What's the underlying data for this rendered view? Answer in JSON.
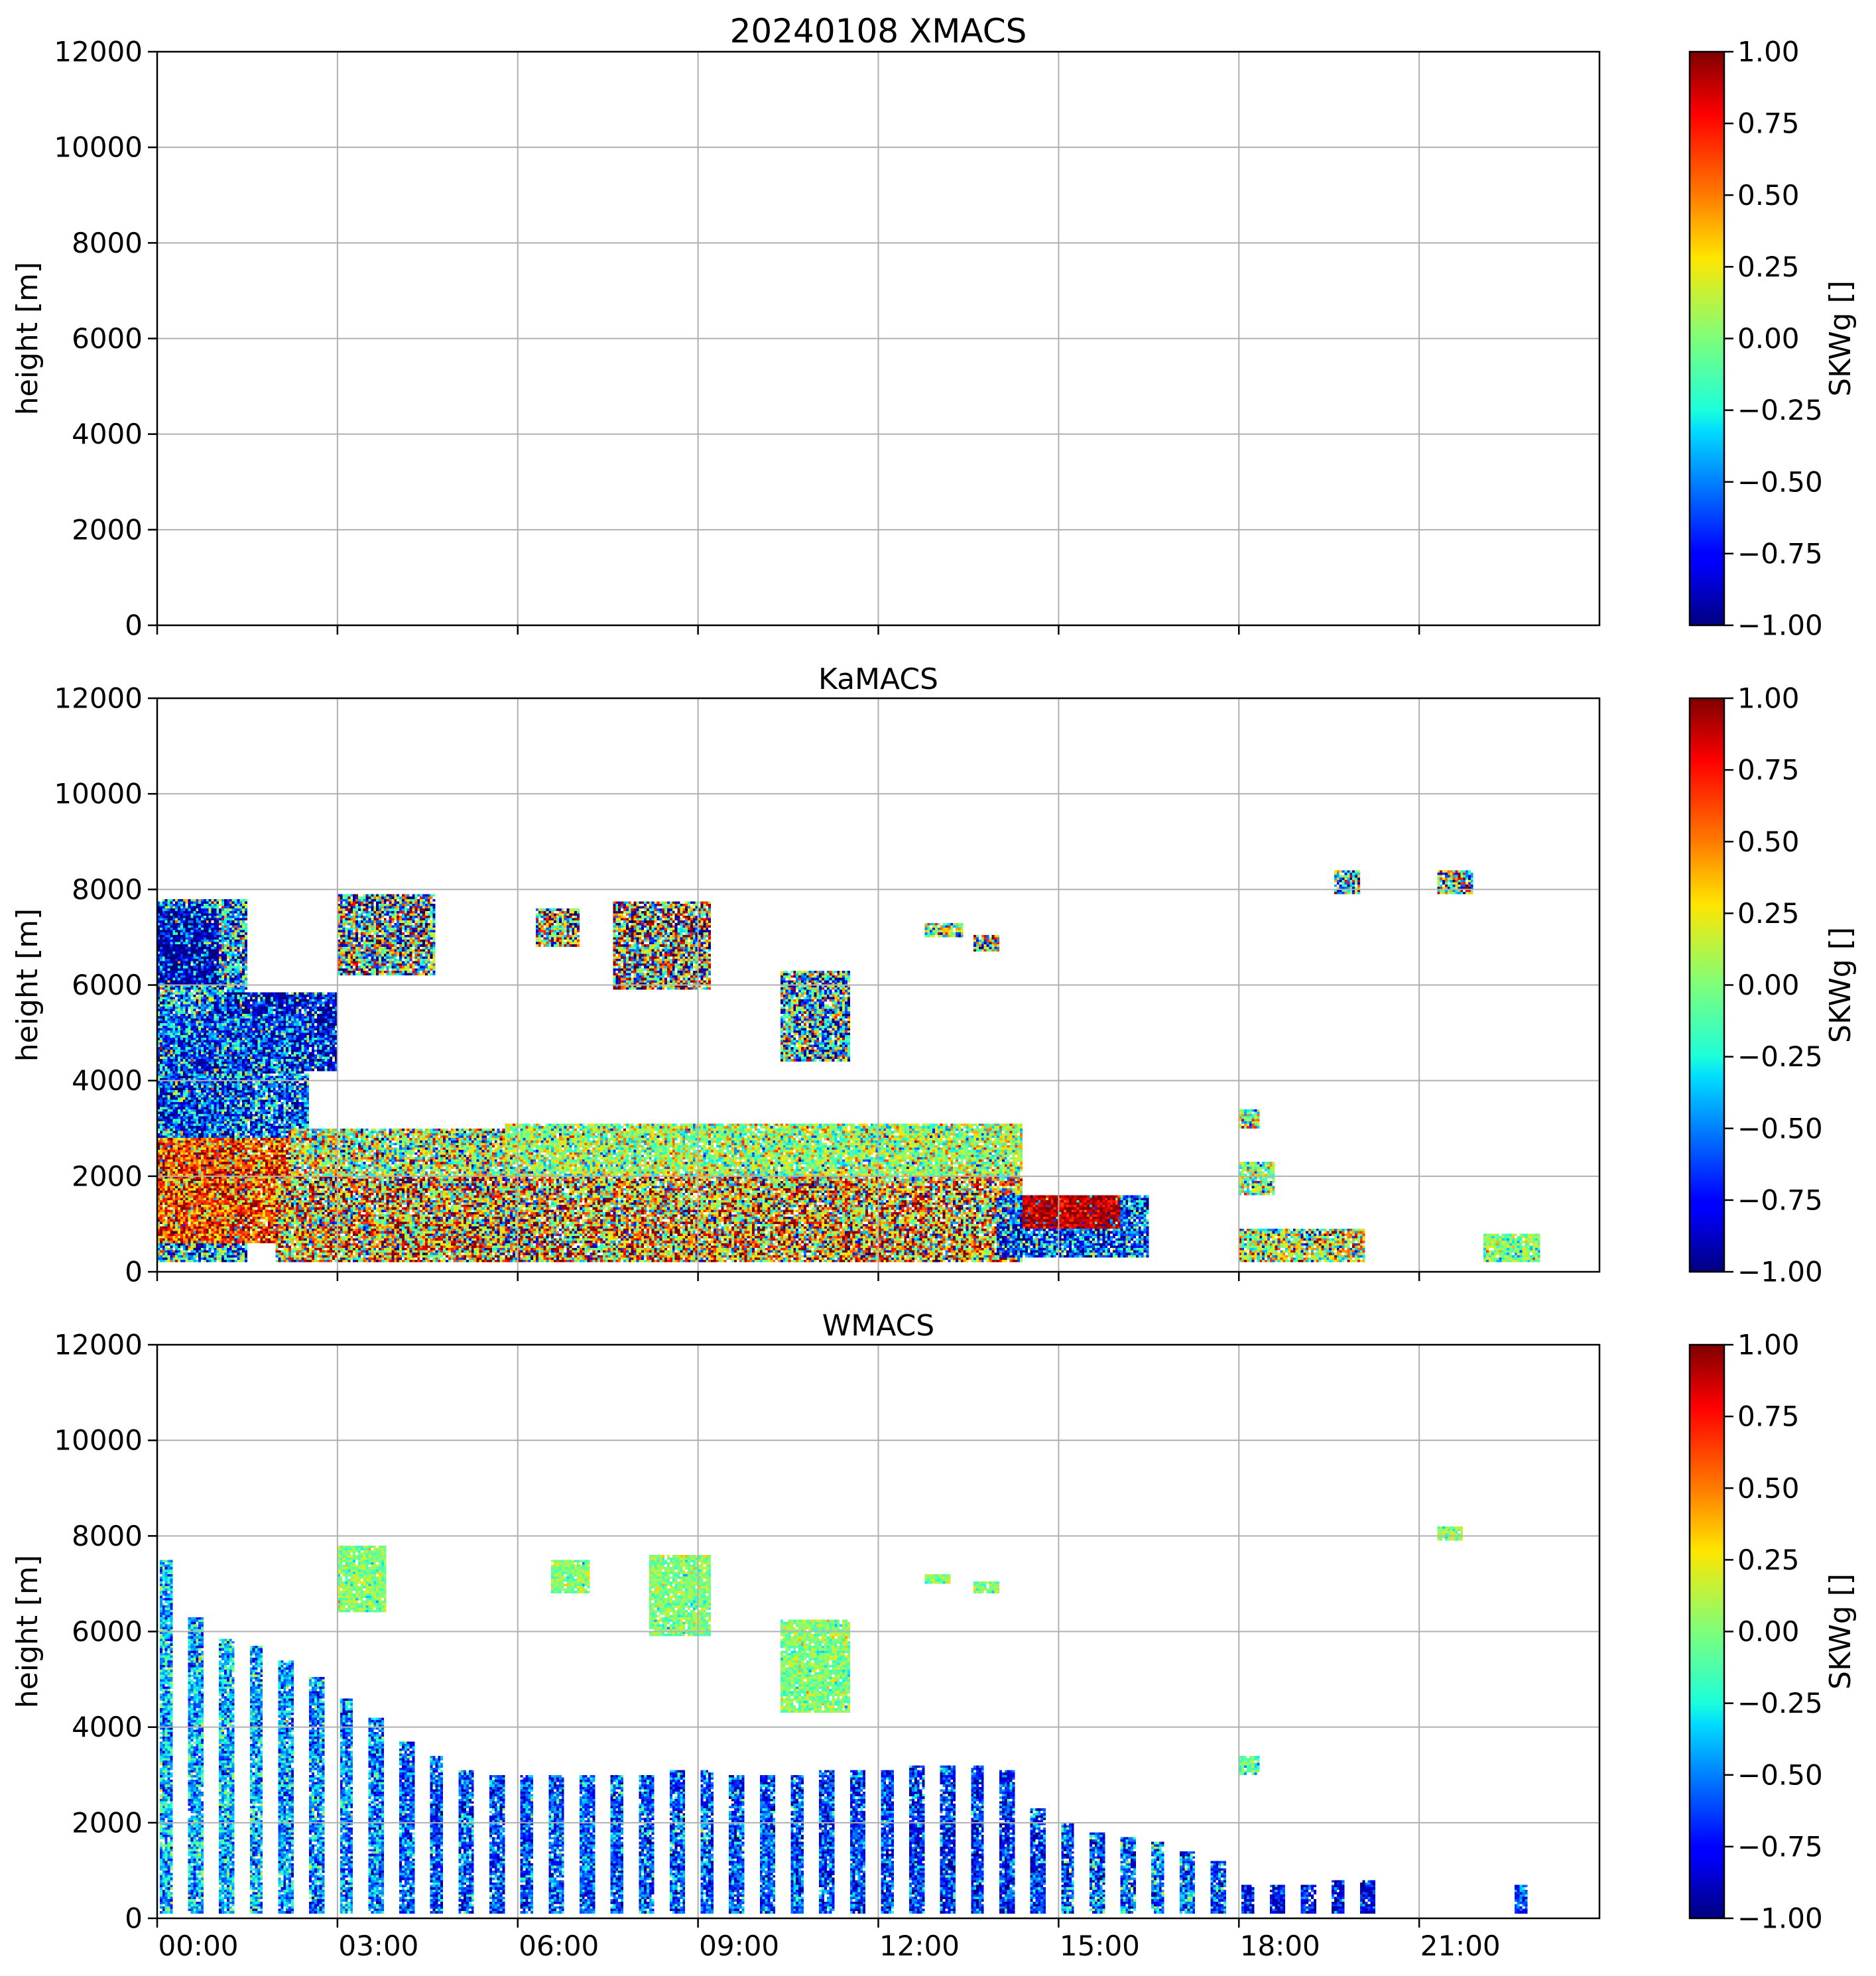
{
  "figure": {
    "colormap": "jet",
    "no_data_color": "#ffffff"
  },
  "chart_data": [
    {
      "type": "heatmap",
      "title": "20240108 XMACS",
      "xlabel": "",
      "ylabel": "height [m]",
      "colorbar_label": "SKWg []",
      "xlim": [
        "00:00",
        "23:59"
      ],
      "ylim": [
        0,
        12000
      ],
      "yticks": [
        "0",
        "2000",
        "4000",
        "6000",
        "8000",
        "10000",
        "12000"
      ],
      "yticks_values": [
        0,
        2000,
        4000,
        6000,
        8000,
        10000,
        12000
      ],
      "xticks_values_h": [
        0,
        3,
        6,
        9,
        12,
        15,
        18,
        21
      ],
      "xticks": [
        "00:00",
        "03:00",
        "06:00",
        "09:00",
        "12:00",
        "15:00",
        "18:00",
        "21:00"
      ],
      "show_xticklabels": false,
      "clim": [
        -1.0,
        1.0
      ],
      "colorbar_ticks": [
        "−1.00",
        "−0.75",
        "−0.50",
        "−0.25",
        "0.00",
        "0.25",
        "0.50",
        "0.75",
        "1.00"
      ],
      "colorbar_ticks_values": [
        -1.0,
        -0.75,
        -0.5,
        -0.25,
        0.0,
        0.25,
        0.5,
        0.75,
        1.0
      ],
      "grid": true,
      "data": []
    },
    {
      "type": "heatmap",
      "title": "KaMACS",
      "xlabel": "",
      "ylabel": "height [m]",
      "colorbar_label": "SKWg []",
      "xlim": [
        "00:00",
        "23:59"
      ],
      "ylim": [
        0,
        12000
      ],
      "yticks": [
        "0",
        "2000",
        "4000",
        "6000",
        "8000",
        "10000",
        "12000"
      ],
      "yticks_values": [
        0,
        2000,
        4000,
        6000,
        8000,
        10000,
        12000
      ],
      "xticks_values_h": [
        0,
        3,
        6,
        9,
        12,
        15,
        18,
        21
      ],
      "xticks": [
        "00:00",
        "03:00",
        "06:00",
        "09:00",
        "12:00",
        "15:00",
        "18:00",
        "21:00"
      ],
      "show_xticklabels": false,
      "clim": [
        -1.0,
        1.0
      ],
      "colorbar_ticks": [
        "−1.00",
        "−0.75",
        "−0.50",
        "−0.25",
        "0.00",
        "0.25",
        "0.50",
        "0.75",
        "1.00"
      ],
      "colorbar_ticks_values": [
        -1.0,
        -0.75,
        -0.5,
        -0.25,
        0.0,
        0.25,
        0.5,
        0.75,
        1.0
      ],
      "grid": true,
      "data": [
        {
          "t0": 0.0,
          "t1": 1.5,
          "h0": 200,
          "h1": 7800,
          "v": -0.4,
          "std": 0.5
        },
        {
          "t0": 0.0,
          "t1": 1.0,
          "h0": 6000,
          "h1": 7600,
          "v": -0.9,
          "std": 0.4
        },
        {
          "t0": 1.0,
          "t1": 3.0,
          "h0": 4200,
          "h1": 5800,
          "v": -0.8,
          "std": 0.4
        },
        {
          "t0": 0.0,
          "t1": 2.5,
          "h0": 2800,
          "h1": 5400,
          "v": -0.6,
          "std": 0.4
        },
        {
          "t0": 0.0,
          "t1": 2.2,
          "h0": 600,
          "h1": 2800,
          "v": 0.6,
          "std": 0.35
        },
        {
          "t0": 2.2,
          "t1": 5.8,
          "h0": 2000,
          "h1": 3000,
          "v": 0.05,
          "std": 0.45
        },
        {
          "t0": 3.8,
          "t1": 4.8,
          "h0": 500,
          "h1": 1100,
          "v": 0.95,
          "std": 0.1
        },
        {
          "t0": 4.8,
          "t1": 6.2,
          "h0": 400,
          "h1": 1100,
          "v": -0.95,
          "std": 0.1
        },
        {
          "t0": 2.0,
          "t1": 14.4,
          "h0": 200,
          "h1": 2000,
          "v": 0.3,
          "std": 0.6
        },
        {
          "t0": 5.8,
          "t1": 14.4,
          "h0": 2000,
          "h1": 3100,
          "v": 0.05,
          "std": 0.3
        },
        {
          "t0": 3.0,
          "t1": 4.6,
          "h0": 6200,
          "h1": 7900,
          "v": -0.1,
          "std": 0.7
        },
        {
          "t0": 7.6,
          "t1": 9.2,
          "h0": 5900,
          "h1": 7700,
          "v": 0.1,
          "std": 0.8
        },
        {
          "t0": 6.3,
          "t1": 7.0,
          "h0": 6800,
          "h1": 7600,
          "v": 0.1,
          "std": 0.7
        },
        {
          "t0": 10.4,
          "t1": 11.5,
          "h0": 4400,
          "h1": 6300,
          "v": -0.3,
          "std": 0.6
        },
        {
          "t0": 12.8,
          "t1": 13.4,
          "h0": 7000,
          "h1": 7300,
          "v": 0.0,
          "std": 0.4
        },
        {
          "t0": 13.6,
          "t1": 14.0,
          "h0": 6700,
          "h1": 7000,
          "v": 0.0,
          "std": 0.6
        },
        {
          "t0": 14.0,
          "t1": 16.5,
          "h0": 300,
          "h1": 1600,
          "v": -0.6,
          "std": 0.4
        },
        {
          "t0": 14.4,
          "t1": 16.0,
          "h0": 900,
          "h1": 1600,
          "v": 0.9,
          "std": 0.15
        },
        {
          "t0": 18.0,
          "t1": 20.1,
          "h0": 200,
          "h1": 900,
          "v": 0.1,
          "std": 0.45
        },
        {
          "t0": 18.0,
          "t1": 18.6,
          "h0": 1600,
          "h1": 2300,
          "v": 0.0,
          "std": 0.35
        },
        {
          "t0": 18.0,
          "t1": 18.3,
          "h0": 3000,
          "h1": 3400,
          "v": 0.0,
          "std": 0.35
        },
        {
          "t0": 22.1,
          "t1": 23.0,
          "h0": 200,
          "h1": 800,
          "v": 0.0,
          "std": 0.2
        },
        {
          "t0": 19.6,
          "t1": 20.0,
          "h0": 7900,
          "h1": 8400,
          "v": -0.2,
          "std": 0.6
        },
        {
          "t0": 21.3,
          "t1": 21.9,
          "h0": 7900,
          "h1": 8400,
          "v": 0.0,
          "std": 0.6
        }
      ]
    },
    {
      "type": "heatmap",
      "title": "WMACS",
      "xlabel": "",
      "ylabel": "height [m]",
      "colorbar_label": "SKWg []",
      "xlim": [
        "00:00",
        "23:59"
      ],
      "ylim": [
        0,
        12000
      ],
      "yticks": [
        "0",
        "2000",
        "4000",
        "6000",
        "8000",
        "10000",
        "12000"
      ],
      "yticks_values": [
        0,
        2000,
        4000,
        6000,
        8000,
        10000,
        12000
      ],
      "xticks_values_h": [
        0,
        3,
        6,
        9,
        12,
        15,
        18,
        21
      ],
      "xticks": [
        "00:00",
        "03:00",
        "06:00",
        "09:00",
        "12:00",
        "15:00",
        "18:00",
        "21:00"
      ],
      "show_xticklabels": true,
      "clim": [
        -1.0,
        1.0
      ],
      "colorbar_ticks": [
        "−1.00",
        "−0.75",
        "−0.50",
        "−0.25",
        "0.00",
        "0.25",
        "0.50",
        "0.75",
        "1.00"
      ],
      "colorbar_ticks_values": [
        -1.0,
        -0.75,
        -0.5,
        -0.25,
        0.0,
        0.25,
        0.5,
        0.75,
        1.0
      ],
      "grid": true,
      "data": [
        {
          "t0": 0.05,
          "t1": 0.25,
          "h0": 100,
          "h1": 7500,
          "v": -0.4,
          "std": 0.25
        },
        {
          "t0": 0.55,
          "t1": 0.75,
          "h0": 100,
          "h1": 6300,
          "v": -0.4,
          "std": 0.25
        },
        {
          "t0": 1.05,
          "t1": 1.25,
          "h0": 100,
          "h1": 5800,
          "v": -0.4,
          "std": 0.25
        },
        {
          "t0": 1.55,
          "t1": 1.75,
          "h0": 100,
          "h1": 5700,
          "v": -0.4,
          "std": 0.25
        },
        {
          "t0": 2.05,
          "t1": 2.25,
          "h0": 100,
          "h1": 5400,
          "v": -0.45,
          "std": 0.25
        },
        {
          "t0": 2.55,
          "t1": 2.75,
          "h0": 100,
          "h1": 5000,
          "v": -0.45,
          "std": 0.25
        },
        {
          "t0": 3.05,
          "t1": 3.25,
          "h0": 100,
          "h1": 4600,
          "v": -0.5,
          "std": 0.25
        },
        {
          "t0": 3.55,
          "t1": 3.75,
          "h0": 100,
          "h1": 4200,
          "v": -0.5,
          "std": 0.25
        },
        {
          "t0": 4.05,
          "t1": 4.25,
          "h0": 100,
          "h1": 3700,
          "v": -0.55,
          "std": 0.25
        },
        {
          "t0": 4.55,
          "t1": 4.75,
          "h0": 100,
          "h1": 3400,
          "v": -0.6,
          "std": 0.25
        },
        {
          "t0": 5.05,
          "t1": 5.25,
          "h0": 100,
          "h1": 3100,
          "v": -0.6,
          "std": 0.25
        },
        {
          "t0": 5.55,
          "t1": 5.75,
          "h0": 100,
          "h1": 3000,
          "v": -0.6,
          "std": 0.25
        },
        {
          "t0": 6.05,
          "t1": 6.25,
          "h0": 100,
          "h1": 3000,
          "v": -0.6,
          "std": 0.25
        },
        {
          "t0": 6.55,
          "t1": 6.75,
          "h0": 100,
          "h1": 3000,
          "v": -0.6,
          "std": 0.25
        },
        {
          "t0": 7.05,
          "t1": 7.25,
          "h0": 100,
          "h1": 3000,
          "v": -0.6,
          "std": 0.25
        },
        {
          "t0": 7.55,
          "t1": 7.75,
          "h0": 100,
          "h1": 3000,
          "v": -0.6,
          "std": 0.25
        },
        {
          "t0": 8.05,
          "t1": 8.25,
          "h0": 100,
          "h1": 3000,
          "v": -0.6,
          "std": 0.25
        },
        {
          "t0": 8.55,
          "t1": 8.75,
          "h0": 100,
          "h1": 3100,
          "v": -0.6,
          "std": 0.25
        },
        {
          "t0": 9.05,
          "t1": 9.25,
          "h0": 100,
          "h1": 3100,
          "v": -0.6,
          "std": 0.25
        },
        {
          "t0": 9.55,
          "t1": 9.75,
          "h0": 100,
          "h1": 3000,
          "v": -0.6,
          "std": 0.25
        },
        {
          "t0": 10.05,
          "t1": 10.25,
          "h0": 100,
          "h1": 3000,
          "v": -0.6,
          "std": 0.25
        },
        {
          "t0": 10.55,
          "t1": 10.75,
          "h0": 100,
          "h1": 3000,
          "v": -0.6,
          "std": 0.25
        },
        {
          "t0": 11.05,
          "t1": 11.25,
          "h0": 100,
          "h1": 3100,
          "v": -0.6,
          "std": 0.25
        },
        {
          "t0": 11.55,
          "t1": 11.75,
          "h0": 100,
          "h1": 3100,
          "v": -0.65,
          "std": 0.25
        },
        {
          "t0": 12.05,
          "t1": 12.25,
          "h0": 100,
          "h1": 3100,
          "v": -0.65,
          "std": 0.25
        },
        {
          "t0": 12.55,
          "t1": 12.75,
          "h0": 100,
          "h1": 3200,
          "v": -0.65,
          "std": 0.25
        },
        {
          "t0": 13.05,
          "t1": 13.25,
          "h0": 100,
          "h1": 3200,
          "v": -0.7,
          "std": 0.25
        },
        {
          "t0": 13.55,
          "t1": 13.75,
          "h0": 100,
          "h1": 3200,
          "v": -0.7,
          "std": 0.25
        },
        {
          "t0": 14.05,
          "t1": 14.25,
          "h0": 100,
          "h1": 3100,
          "v": -0.7,
          "std": 0.25
        },
        {
          "t0": 14.55,
          "t1": 14.75,
          "h0": 100,
          "h1": 2300,
          "v": -0.65,
          "std": 0.25
        },
        {
          "t0": 15.05,
          "t1": 15.25,
          "h0": 100,
          "h1": 2000,
          "v": -0.6,
          "std": 0.3
        },
        {
          "t0": 15.55,
          "t1": 15.75,
          "h0": 100,
          "h1": 1800,
          "v": -0.6,
          "std": 0.3
        },
        {
          "t0": 16.05,
          "t1": 16.25,
          "h0": 100,
          "h1": 1700,
          "v": -0.5,
          "std": 0.3
        },
        {
          "t0": 16.55,
          "t1": 16.75,
          "h0": 100,
          "h1": 1600,
          "v": -0.5,
          "std": 0.3
        },
        {
          "t0": 17.05,
          "t1": 17.25,
          "h0": 100,
          "h1": 1400,
          "v": -0.5,
          "std": 0.3
        },
        {
          "t0": 17.55,
          "t1": 17.75,
          "h0": 100,
          "h1": 1200,
          "v": -0.6,
          "std": 0.25
        },
        {
          "t0": 18.05,
          "t1": 18.25,
          "h0": 100,
          "h1": 700,
          "v": -0.75,
          "std": 0.2
        },
        {
          "t0": 18.55,
          "t1": 18.75,
          "h0": 100,
          "h1": 700,
          "v": -0.75,
          "std": 0.2
        },
        {
          "t0": 19.05,
          "t1": 19.25,
          "h0": 100,
          "h1": 700,
          "v": -0.75,
          "std": 0.2
        },
        {
          "t0": 19.55,
          "t1": 19.75,
          "h0": 100,
          "h1": 800,
          "v": -0.8,
          "std": 0.2
        },
        {
          "t0": 20.05,
          "t1": 20.25,
          "h0": 100,
          "h1": 800,
          "v": -0.8,
          "std": 0.2
        },
        {
          "t0": 22.6,
          "t1": 22.8,
          "h0": 100,
          "h1": 700,
          "v": -0.6,
          "std": 0.2
        },
        {
          "t0": 3.0,
          "t1": 3.8,
          "h0": 6400,
          "h1": 7800,
          "v": 0.0,
          "std": 0.15
        },
        {
          "t0": 6.6,
          "t1": 7.2,
          "h0": 6800,
          "h1": 7500,
          "v": 0.0,
          "std": 0.15
        },
        {
          "t0": 8.2,
          "t1": 9.2,
          "h0": 5900,
          "h1": 7600,
          "v": 0.0,
          "std": 0.15
        },
        {
          "t0": 10.4,
          "t1": 11.5,
          "h0": 4300,
          "h1": 6200,
          "v": 0.0,
          "std": 0.15
        },
        {
          "t0": 12.8,
          "t1": 13.2,
          "h0": 7000,
          "h1": 7200,
          "v": 0.0,
          "std": 0.15
        },
        {
          "t0": 13.6,
          "t1": 14.0,
          "h0": 6800,
          "h1": 7000,
          "v": 0.0,
          "std": 0.15
        },
        {
          "t0": 18.0,
          "t1": 18.3,
          "h0": 3000,
          "h1": 3400,
          "v": -0.1,
          "std": 0.2
        },
        {
          "t0": 21.3,
          "t1": 21.7,
          "h0": 7900,
          "h1": 8200,
          "v": 0.0,
          "std": 0.15
        }
      ]
    }
  ]
}
